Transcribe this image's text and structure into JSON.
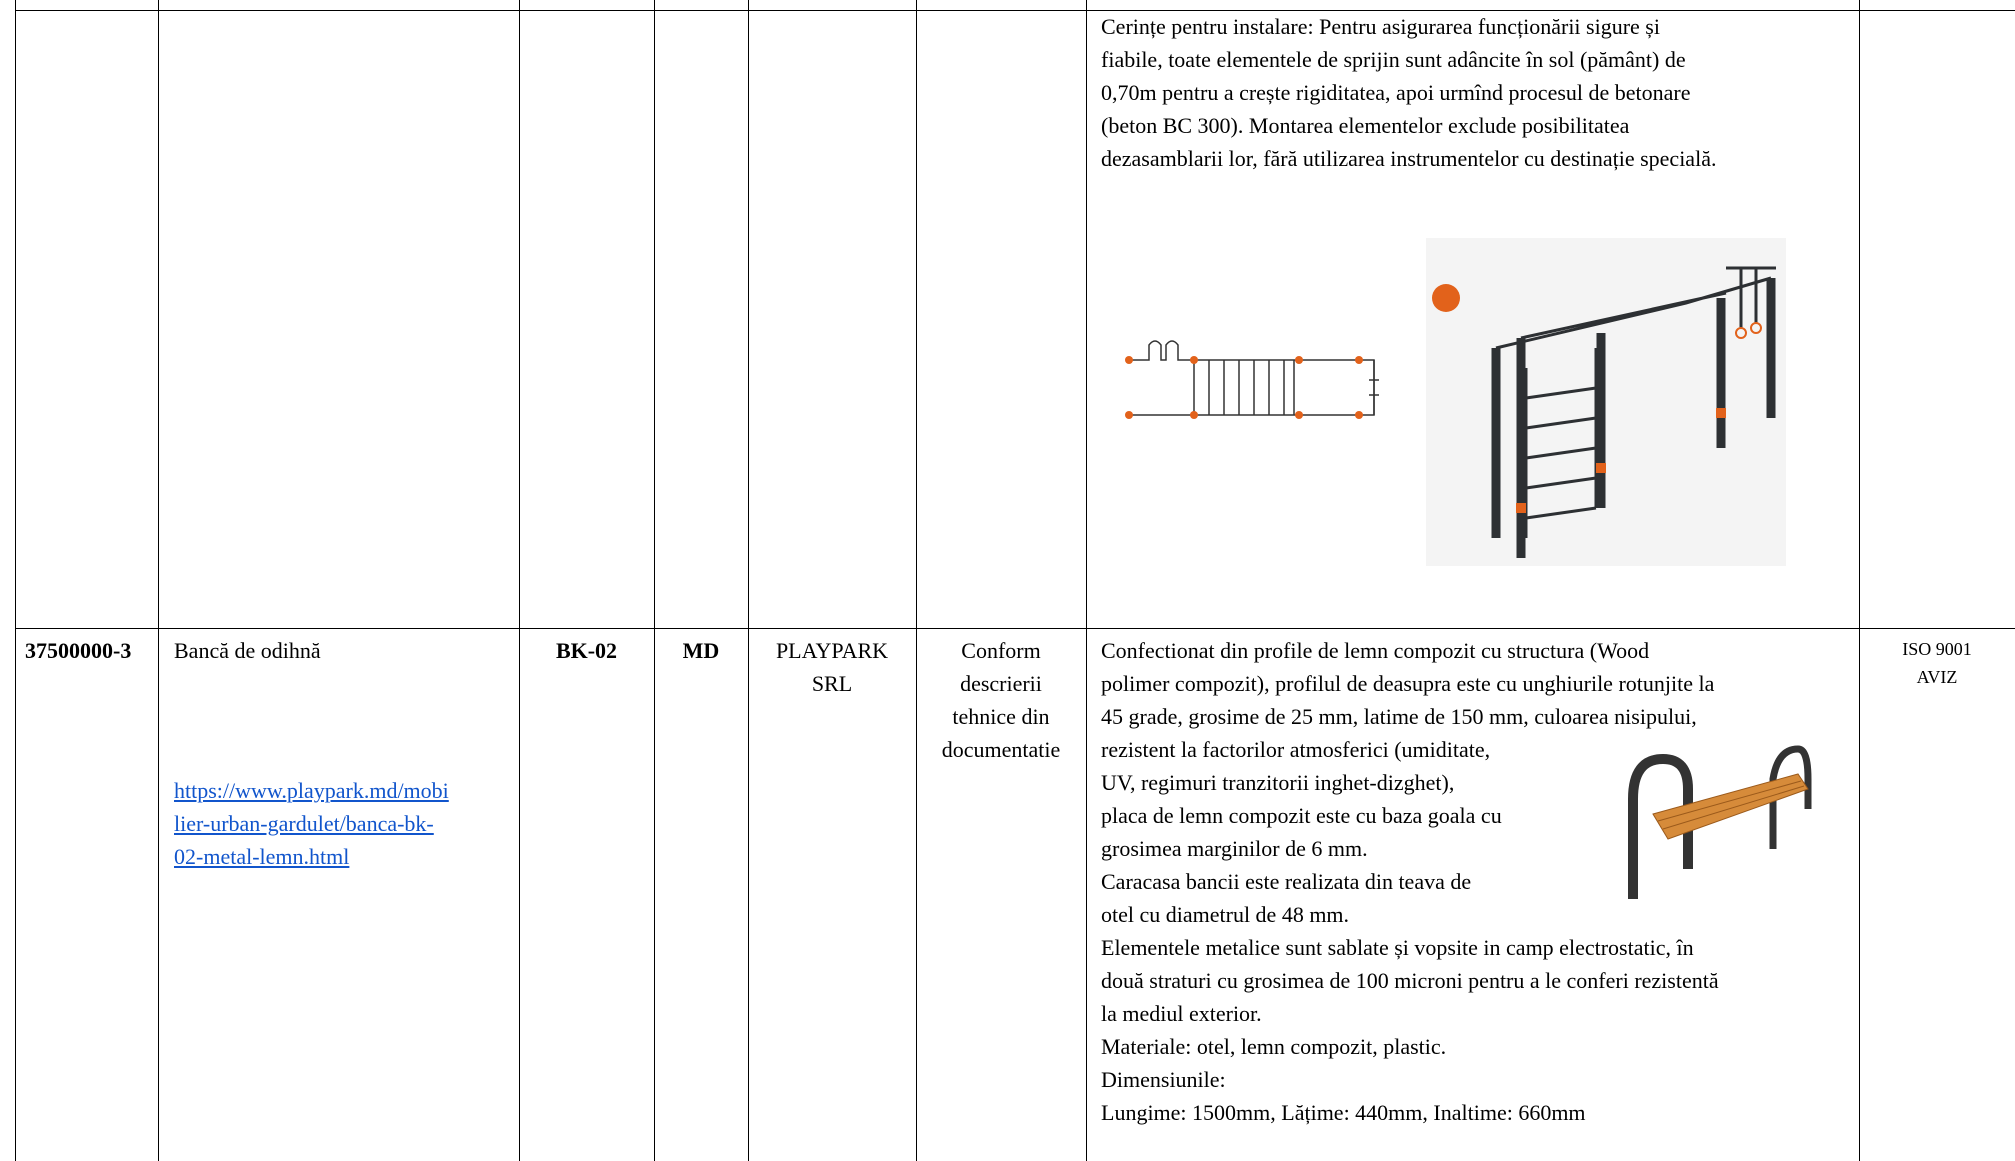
{
  "table": {
    "rows": [
      {
        "description": [
          "Cerințe pentru instalare: Pentru asigurarea funcționării sigure și",
          "fiabile, toate elementele de sprijin sunt adâncite în sol (pământ)  de",
          "0,70m  pentru a crește rigiditatea, apoi urmînd procesul de betonare",
          "(beton BC 300). Montarea elementelor exclude posibilitatea",
          "dezasamblarii lor, fără utilizarea instrumentelor cu destinație specială."
        ]
      },
      {
        "code": "37500000-3",
        "name": "Bancă de odihnă",
        "link": [
          "https://www.playpark.md/mobi",
          "lier-urban-gardulet/banca-bk-",
          "02-metal-lemn.html"
        ],
        "model": "BK-02",
        "origin": "MD",
        "supplier": [
          "PLAYPARK",
          "SRL"
        ],
        "conformity": [
          "Conform",
          "descrierii",
          "tehnice din",
          "documentatie"
        ],
        "description": [
          "Confectionat din profile de lemn compozit cu structura (Wood",
          "polimer compozit), profilul de deasupra este cu unghiurile rotunjite la",
          "45 grade, grosime de 25 mm, latime de 150 mm, culoarea nisipului,",
          "rezistent la factorilor atmosferici (umiditate,",
          "UV, regimuri tranzitorii inghet-dizghet),",
          "placa de lemn compozit este cu baza goala cu",
          "grosimea marginilor de 6 mm.",
          "Caracasa bancii este realizata din teava de",
          "otel cu diametrul de 48 mm.",
          "Elementele metalice sunt sablate și vopsite in camp electrostatic, în",
          "două straturi cu grosimea de 100 microni pentru a le conferi rezistentă",
          "la mediul exterior.",
          "Materiale: otel, lemn compozit, plastic.",
          "Dimensiunile:",
          "Lungime: 1500mm, Lățime: 440mm, Inaltime: 660mm"
        ],
        "certificates": [
          "ISO 9001",
          "AVIZ"
        ]
      }
    ]
  }
}
